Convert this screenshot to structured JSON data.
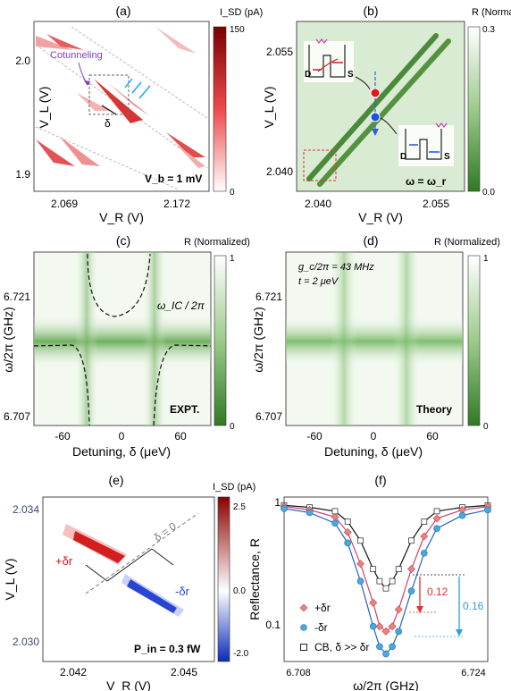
{
  "panels": {
    "a": {
      "tag": "(a)",
      "cbar_title": "I_SD (pA)",
      "cbar_ticks": [
        "150",
        "0"
      ],
      "ylabel": "V_L (V)",
      "xlabel": "V_R (V)",
      "yticks": [
        "2.0",
        "1.9"
      ],
      "xticks": [
        "2.069",
        "2.172"
      ],
      "annotation": "Cotunneling",
      "delta": "δ",
      "bias": "V_b = 1 mV",
      "colors": {
        "dark": "#8b0000",
        "mid": "#e33b3b",
        "light": "#ffffff",
        "arrows": "#00aaff",
        "purple": "#7a3fc4"
      }
    },
    "b": {
      "tag": "(b)",
      "cbar_title": "R (Normalized)",
      "cbar_ticks": [
        "0.3",
        "0.0"
      ],
      "ylabel": "V_L (V)",
      "xlabel": "V_R (V)",
      "yticks": [
        "2.055",
        "2.040"
      ],
      "xticks": [
        "2.040",
        "2.055"
      ],
      "condition": "ω = ω_r",
      "dot_labels": [
        "D",
        "S",
        "D",
        "S"
      ]
    },
    "c": {
      "tag": "(c)",
      "cbar_title": "R (Normalized)",
      "cbar_ticks": [
        "1",
        "0"
      ],
      "ylabel": "ω/2π (GHz)",
      "xlabel": "Detuning, δ (μeV)",
      "yticks": [
        "6.721",
        "6.707"
      ],
      "xticks": [
        "-60",
        "0",
        "60"
      ],
      "curve_label": "ω_IC / 2π",
      "corner": "EXPT."
    },
    "d": {
      "tag": "(d)",
      "cbar_title": "R (Normalized)",
      "cbar_ticks": [
        "1",
        "0"
      ],
      "ylabel": "ω/2π (GHz)",
      "xlabel": "Detuning, δ (μeV)",
      "yticks": [
        "6.721",
        "6.707"
      ],
      "xticks": [
        "-60",
        "0",
        "60"
      ],
      "params": [
        "g_c/2π = 43 MHz",
        "t = 2 μeV"
      ],
      "corner": "Theory"
    },
    "e": {
      "tag": "(e)",
      "cbar_title": "I_SD (pA)",
      "cbar_ticks": [
        "2.5",
        "0.0",
        "-2.0"
      ],
      "ylabel": "V_L (V)",
      "xlabel": "V_R (V)",
      "yticks": [
        "2.034",
        "2.030"
      ],
      "xticks": [
        "2.042",
        "2.045"
      ],
      "plus_label": "+δr",
      "minus_label": "-δr",
      "zero_label": "δ = 0",
      "power": "P_in = 0.3 fW"
    },
    "f": {
      "tag": "(f)",
      "ylabel": "Reflectance, R",
      "xlabel": "ω/2π (GHz)",
      "yticks": [
        "1",
        "0.1"
      ],
      "xticks": [
        "6.708",
        "6.724"
      ],
      "legend": [
        "+δr",
        "-δr",
        "CB, δ >> δr"
      ],
      "gap_red": "0.12",
      "gap_blue": "0.16"
    }
  },
  "chart_data": {
    "type": "scatter",
    "title": "",
    "xlabel": "ω/2π (GHz)",
    "ylabel": "Reflectance, R",
    "xlim": [
      6.708,
      6.724
    ],
    "yscale": "log",
    "series": [
      {
        "name": "CB, δ >> δr",
        "color": "#222222",
        "x": [
          6.708,
          6.71,
          6.712,
          6.713,
          6.714,
          6.715,
          6.7155,
          6.716,
          6.7165,
          6.717,
          6.718,
          6.719,
          6.72,
          6.722,
          6.724
        ],
        "values": [
          0.95,
          0.92,
          0.86,
          0.72,
          0.52,
          0.32,
          0.26,
          0.23,
          0.26,
          0.32,
          0.52,
          0.72,
          0.86,
          0.92,
          0.95
        ]
      },
      {
        "name": "+δr",
        "color": "#f08080",
        "x": [
          6.708,
          6.71,
          6.712,
          6.713,
          6.714,
          6.715,
          6.7155,
          6.716,
          6.7165,
          6.717,
          6.718,
          6.719,
          6.72,
          6.722,
          6.724
        ],
        "values": [
          0.93,
          0.88,
          0.78,
          0.6,
          0.35,
          0.18,
          0.12,
          0.11,
          0.12,
          0.16,
          0.32,
          0.56,
          0.76,
          0.88,
          0.93
        ]
      },
      {
        "name": "-δr",
        "color": "#4aa8e0",
        "x": [
          6.708,
          6.71,
          6.712,
          6.713,
          6.714,
          6.715,
          6.7155,
          6.716,
          6.7165,
          6.717,
          6.718,
          6.719,
          6.72,
          6.722,
          6.724
        ],
        "values": [
          0.9,
          0.84,
          0.7,
          0.5,
          0.26,
          0.12,
          0.085,
          0.075,
          0.085,
          0.11,
          0.22,
          0.42,
          0.64,
          0.8,
          0.88
        ]
      }
    ]
  }
}
